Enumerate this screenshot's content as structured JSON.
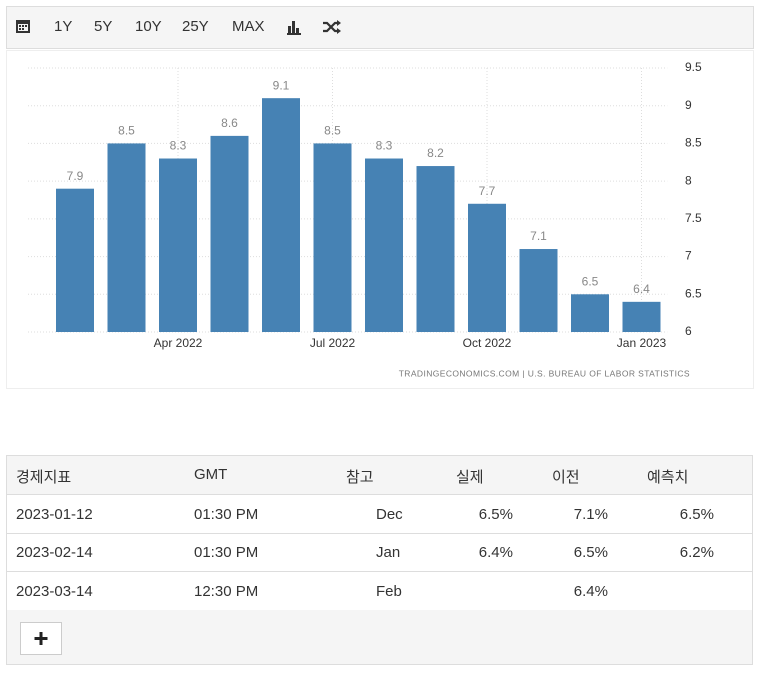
{
  "toolbar": {
    "buttons": [
      "1Y",
      "5Y",
      "10Y",
      "25Y",
      "MAX"
    ]
  },
  "chart_data": {
    "type": "bar",
    "categories": [
      null,
      null,
      "Apr 2022",
      null,
      null,
      "Jul 2022",
      null,
      null,
      "Oct 2022",
      null,
      null,
      "Jan 2023"
    ],
    "values": [
      7.9,
      8.5,
      8.3,
      8.6,
      9.1,
      8.5,
      8.3,
      8.2,
      7.7,
      7.1,
      6.5,
      6.4
    ],
    "color": "#4682b4",
    "ylim": [
      6,
      9.5
    ],
    "yticks": [
      6,
      6.5,
      7,
      7.5,
      8,
      8.5,
      9,
      9.5
    ],
    "grid": true,
    "source": "TRADINGECONOMICS.COM | U.S. BUREAU OF LABOR STATISTICS"
  },
  "table": {
    "header": [
      "경제지표",
      "GMT",
      "참고",
      "실제",
      "이전",
      "예측치"
    ],
    "rows": [
      [
        "2023-01-12",
        "01:30 PM",
        "Dec",
        "6.5%",
        "7.1%",
        "6.5%"
      ],
      [
        "2023-02-14",
        "01:30 PM",
        "Jan",
        "6.4%",
        "6.5%",
        "6.2%"
      ],
      [
        "2023-03-14",
        "12:30 PM",
        "Feb",
        null,
        "6.4%",
        null
      ]
    ]
  }
}
